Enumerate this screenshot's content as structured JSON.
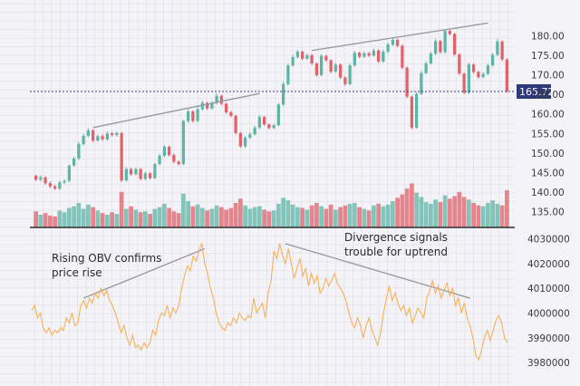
{
  "colors": {
    "background": "#f4f3f7",
    "grid": "#dcdbe4",
    "up": "#5db5a6",
    "down": "#e0626b",
    "obv_line": "#f6b15a",
    "trend_line": "#9a9aa4",
    "price_line": "#3b3f8c",
    "price_badge": "#2f3a7a"
  },
  "chart_data": [
    {
      "type": "candlestick",
      "title": "",
      "xlabel": "",
      "ylabel": "",
      "ylim": [
        131,
        184
      ],
      "y_ticks": [
        "180.00",
        "175.00",
        "170.00",
        "165.00",
        "160.00",
        "155.00",
        "150.00",
        "145.00",
        "140.00",
        "135.00"
      ],
      "y_tick_values": [
        180,
        175,
        170,
        165,
        160,
        155,
        150,
        145,
        140,
        135
      ],
      "current_price": "165.72",
      "current_price_value": 165.72,
      "grid": true,
      "candles": [
        [
          144.2,
          143.2,
          144.5,
          142.8
        ],
        [
          143.2,
          143.8,
          144.3,
          142.7
        ],
        [
          143.8,
          142.3,
          144.1,
          141.9
        ],
        [
          142.3,
          141.5,
          142.8,
          141
        ],
        [
          141.5,
          140.9,
          141.9,
          140.6
        ],
        [
          140.9,
          142.5,
          142.9,
          140.6
        ],
        [
          142.5,
          142.9,
          143.3,
          142.1
        ],
        [
          142.9,
          146.8,
          147.1,
          142.6
        ],
        [
          146.8,
          148.6,
          149.1,
          146.5
        ],
        [
          148.6,
          152.3,
          152.8,
          148.2
        ],
        [
          152.3,
          154.4,
          154.9,
          151.9
        ],
        [
          154.4,
          155.8,
          156.4,
          154
        ],
        [
          155.8,
          153.2,
          156.1,
          152.8
        ],
        [
          153.2,
          154.3,
          154.8,
          152.9
        ],
        [
          154.3,
          153.5,
          154.8,
          153.1
        ],
        [
          153.5,
          155,
          155.5,
          153.2
        ],
        [
          155,
          154.6,
          155.4,
          154.2
        ],
        [
          154.6,
          155.1,
          155.5,
          154.2
        ],
        [
          155.1,
          143,
          155.4,
          142.6
        ],
        [
          143,
          145.9,
          146.4,
          142.7
        ],
        [
          145.9,
          144.6,
          146.3,
          144.2
        ],
        [
          144.6,
          145.9,
          146.3,
          144.3
        ],
        [
          145.9,
          143.4,
          146.2,
          143
        ],
        [
          143.4,
          144.8,
          145.2,
          143.1
        ],
        [
          144.8,
          143.6,
          145.1,
          143.2
        ],
        [
          143.6,
          147.2,
          147.5,
          143.3
        ],
        [
          147.2,
          149.3,
          149.8,
          146.9
        ],
        [
          149.3,
          151.6,
          152.1,
          148.9
        ],
        [
          151.6,
          149.5,
          151.9,
          149.1
        ],
        [
          149.5,
          147.8,
          149.9,
          147.4
        ],
        [
          147.8,
          147.2,
          148.1,
          146.8
        ],
        [
          147.2,
          158.2,
          158.5,
          146.9
        ],
        [
          158.2,
          160.6,
          161.2,
          157.8
        ],
        [
          160.6,
          158.2,
          160.9,
          157.8
        ],
        [
          158.2,
          161.2,
          161.7,
          157.9
        ],
        [
          161.2,
          162.8,
          163.4,
          160.8
        ],
        [
          162.8,
          161.4,
          163.1,
          161
        ],
        [
          161.4,
          162.8,
          163.3,
          161.1
        ],
        [
          162.8,
          164.6,
          165.2,
          162.4
        ],
        [
          164.6,
          162.6,
          164.9,
          162.2
        ],
        [
          162.6,
          160.4,
          162.9,
          160
        ],
        [
          160.4,
          159.5,
          160.8,
          159.1
        ],
        [
          159.5,
          155.1,
          159.8,
          154.7
        ],
        [
          155.1,
          151.7,
          155.4,
          151.3
        ],
        [
          151.7,
          153.9,
          154.4,
          151.3
        ],
        [
          153.9,
          154.8,
          155.3,
          153.6
        ],
        [
          154.8,
          156.5,
          157,
          154.5
        ],
        [
          156.5,
          159.2,
          159.7,
          156.1
        ],
        [
          159.2,
          157.3,
          159.5,
          156.9
        ],
        [
          157.3,
          156.4,
          157.6,
          156
        ],
        [
          156.4,
          157.1,
          157.5,
          156.1
        ],
        [
          157.1,
          162.4,
          162.8,
          156.8
        ],
        [
          162.4,
          167.6,
          168.2,
          162
        ],
        [
          167.6,
          172.4,
          172.9,
          167.2
        ],
        [
          172.4,
          174.5,
          175.1,
          172
        ],
        [
          174.5,
          175.9,
          176.4,
          174.1
        ],
        [
          175.9,
          174.1,
          176.2,
          173.7
        ],
        [
          174.1,
          175,
          175.4,
          173.8
        ],
        [
          175,
          172.9,
          175.3,
          172.5
        ],
        [
          172.9,
          169.9,
          173.2,
          169.5
        ],
        [
          169.9,
          174.8,
          175.3,
          169.6
        ],
        [
          174.8,
          173.7,
          175.1,
          173.3
        ],
        [
          173.7,
          170.8,
          174,
          170.4
        ],
        [
          170.8,
          172.6,
          173.1,
          170.5
        ],
        [
          172.6,
          169.3,
          172.9,
          168.9
        ],
        [
          169.3,
          167.6,
          169.6,
          167.2
        ],
        [
          167.6,
          172.4,
          172.9,
          167.3
        ],
        [
          172.4,
          175.6,
          176.1,
          172
        ],
        [
          175.6,
          174.6,
          175.9,
          174.2
        ],
        [
          174.6,
          175.5,
          175.9,
          174.3
        ],
        [
          175.5,
          174.9,
          175.8,
          174.5
        ],
        [
          174.9,
          176.2,
          176.7,
          174.6
        ],
        [
          176.2,
          173.4,
          176.5,
          173
        ],
        [
          173.4,
          175.9,
          176.4,
          173.1
        ],
        [
          175.9,
          177.7,
          178.2,
          175.5
        ],
        [
          177.7,
          178.9,
          179.4,
          177.3
        ],
        [
          178.9,
          177.4,
          179.2,
          177
        ],
        [
          177.4,
          171.8,
          177.7,
          171.4
        ],
        [
          171.8,
          164.4,
          172.1,
          164
        ],
        [
          164.4,
          156.5,
          164.7,
          156.1
        ],
        [
          156.5,
          165.1,
          165.6,
          156.2
        ],
        [
          165.1,
          170.4,
          170.9,
          164.8
        ],
        [
          170.4,
          172.9,
          173.4,
          170.1
        ],
        [
          172.9,
          175.4,
          175.9,
          172.6
        ],
        [
          175.4,
          178.6,
          179.2,
          175
        ],
        [
          178.6,
          175.8,
          178.9,
          175.4
        ],
        [
          175.8,
          181.2,
          181.7,
          175.4
        ],
        [
          181.2,
          180.4,
          181.5,
          180
        ],
        [
          180.4,
          175.2,
          180.7,
          174.8
        ],
        [
          175.2,
          170.3,
          175.5,
          169.9
        ],
        [
          170.3,
          165.4,
          170.6,
          165
        ],
        [
          165.4,
          172.6,
          173.1,
          165.1
        ],
        [
          172.6,
          170.7,
          172.9,
          170.3
        ],
        [
          170.7,
          169.4,
          171,
          169
        ],
        [
          169.4,
          170.2,
          170.6,
          169.1
        ],
        [
          170.2,
          172.4,
          172.9,
          169.9
        ],
        [
          172.4,
          175.1,
          175.6,
          172
        ],
        [
          175.1,
          178.5,
          179.1,
          174.7
        ],
        [
          178.5,
          173.9,
          178.8,
          173.5
        ],
        [
          173.9,
          165.8,
          174.2,
          165.4
        ]
      ],
      "volume": [
        1.9,
        1.5,
        1.7,
        1.4,
        1.3,
        2.0,
        1.8,
        2.3,
        2.5,
        2.9,
        2.2,
        2.7,
        2.4,
        2.0,
        1.7,
        1.5,
        1.8,
        1.6,
        4.2,
        2.2,
        2.5,
        2.1,
        1.8,
        1.9,
        1.6,
        2.2,
        2.4,
        2.8,
        2.3,
        1.9,
        1.7,
        4.0,
        3.1,
        2.5,
        2.7,
        2.3,
        2.0,
        2.2,
        2.6,
        2.4,
        2.1,
        2.3,
        2.9,
        3.4,
        2.6,
        2.2,
        2.4,
        2.5,
        2.1,
        1.9,
        2.0,
        2.8,
        3.5,
        3.2,
        2.7,
        2.4,
        2.3,
        2.1,
        2.6,
        2.9,
        2.5,
        2.2,
        2.7,
        2.1,
        2.4,
        2.6,
        2.8,
        2.9,
        2.4,
        2.2,
        2.0,
        2.6,
        2.8,
        2.5,
        2.7,
        3.1,
        3.5,
        3.9,
        4.6,
        5.2,
        4.1,
        3.6,
        3.0,
        2.8,
        3.3,
        3.0,
        3.8,
        3.4,
        3.7,
        4.2,
        3.6,
        3.3,
        2.9,
        2.6,
        2.5,
        2.9,
        3.2,
        2.8,
        2.6,
        4.4
      ],
      "volume_ylim": [
        0,
        6
      ]
    },
    {
      "type": "line",
      "title": "",
      "xlabel": "",
      "ylabel": "",
      "ylim": [
        3976000,
        4032000
      ],
      "y_ticks": [
        "4030000",
        "4020000",
        "4010000",
        "4000000",
        "3990000",
        "3980000"
      ],
      "y_tick_values": [
        4030000,
        4020000,
        4010000,
        4000000,
        3990000,
        3980000
      ],
      "grid": true,
      "series": [
        {
          "values": [
            4001000,
            4003000,
            3998000,
            4000000,
            3994000,
            3992000,
            3994000,
            3991000,
            3993000,
            3992000,
            3994000,
            3993000,
            3998000,
            3996000,
            4000000,
            3995000,
            3996000,
            4003000,
            4005000,
            4002000,
            4006000,
            4004000,
            4008000,
            4006000,
            4010000,
            4007000,
            4009000,
            4005000,
            4003000,
            4000000,
            3996000,
            3992000,
            3995000,
            3990000,
            3987000,
            3991000,
            3986000,
            3987000,
            3985000,
            3988000,
            3986000,
            3988000,
            3993000,
            3991000,
            3997000,
            4000000,
            3999000,
            4003000,
            3998000,
            4002000,
            4000000,
            4003000,
            4010000,
            4015000,
            4019000,
            4017000,
            4023000,
            4021000,
            4025000,
            4028000,
            4020000,
            4016000,
            4010000,
            4006000,
            4000000,
            3996000,
            3994000,
            3993000,
            3996000,
            3995000,
            3998000,
            3996000,
            4000000,
            3998000,
            3997000,
            3999000,
            3998000,
            4006000,
            4000000,
            4002000,
            4004000,
            3998000,
            4008000,
            4013000,
            4025000,
            4022000,
            4028000,
            4023000,
            4020000,
            4026000,
            4020000,
            4014000,
            4018000,
            4022000,
            4015000,
            4018000,
            4011000,
            4016000,
            4012000,
            4015000,
            4008000,
            4010000,
            4014000,
            4011000,
            4013000,
            4016000,
            4012000,
            4010000,
            4008000,
            4005000,
            4000000,
            3996000,
            3994000,
            3998000,
            3995000,
            3990000,
            3995000,
            3998000,
            3993000,
            3990000,
            3987000,
            3992000,
            4000000,
            4006000,
            4011000,
            4005000,
            4008000,
            4004000,
            4001000,
            4003000,
            3999000,
            4002000,
            3996000,
            3999000,
            4002000,
            4000000,
            3998000,
            4006000,
            4009000,
            4013000,
            4008000,
            4011000,
            4006000,
            4009000,
            4012000,
            4007000,
            4010000,
            4003000,
            4006000,
            4000000,
            4004000,
            3998000,
            3995000,
            3990000,
            3983000,
            3981000,
            3985000,
            3990000,
            3993000,
            3989000,
            3993000,
            3997000,
            3999000,
            3996000,
            3990000,
            3988000
          ]
        }
      ]
    }
  ],
  "trendlines": [
    {
      "panel": "price",
      "from": [
        12,
        156.5
      ],
      "to": [
        47,
        165.2
      ]
    },
    {
      "panel": "price",
      "from": [
        58,
        176.2
      ],
      "to": [
        95,
        183.2
      ]
    },
    {
      "panel": "obv",
      "from": [
        18,
        4006000
      ],
      "to": [
        60,
        4026000
      ]
    },
    {
      "panel": "obv",
      "from": [
        88,
        4028000
      ],
      "to": [
        152,
        4006000
      ]
    }
  ],
  "annotations": [
    {
      "lines": [
        "Rising OBV confirms",
        "price rise"
      ]
    },
    {
      "lines": [
        "Divergence signals",
        "trouble for uptrend"
      ]
    }
  ]
}
